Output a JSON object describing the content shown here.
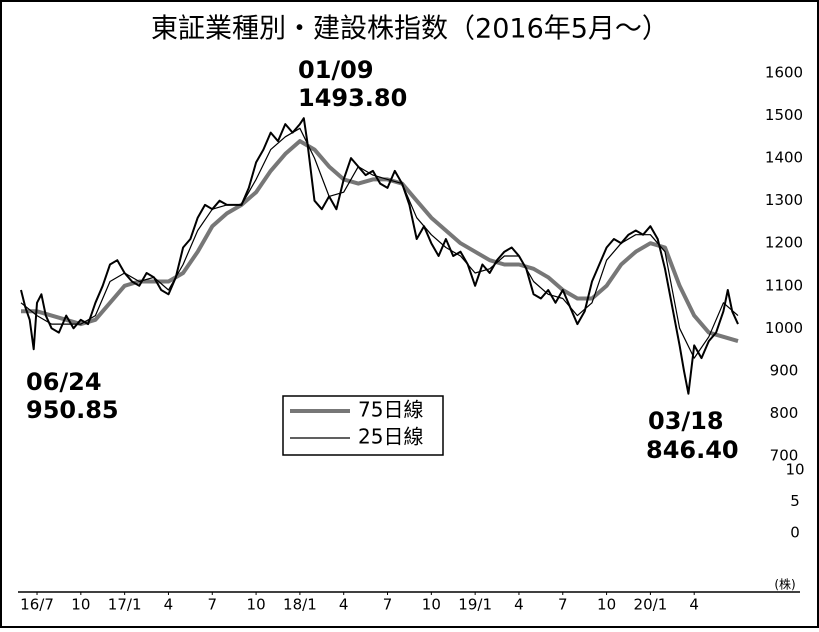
{
  "chart_data": {
    "type": "line",
    "title": "東証業種別・建設株指数（2016年5月～）",
    "xlim": [
      -1.2,
      49.3
    ],
    "xticks": [
      {
        "value": 0,
        "label": "16/7"
      },
      {
        "value": 3,
        "label": "10"
      },
      {
        "value": 6,
        "label": "17/1"
      },
      {
        "value": 9,
        "label": "4"
      },
      {
        "value": 12,
        "label": "7"
      },
      {
        "value": 15,
        "label": "10"
      },
      {
        "value": 18,
        "label": "18/1"
      },
      {
        "value": 21,
        "label": "4"
      },
      {
        "value": 24,
        "label": "7"
      },
      {
        "value": 27,
        "label": "10"
      },
      {
        "value": 30,
        "label": "19/1"
      },
      {
        "value": 33,
        "label": "4"
      },
      {
        "value": 36,
        "label": "7"
      },
      {
        "value": 39,
        "label": "10"
      },
      {
        "value": 42,
        "label": "20/1"
      },
      {
        "value": 45,
        "label": "4"
      }
    ],
    "ylim": [
      700,
      1600
    ],
    "yticks": [
      700,
      800,
      900,
      1000,
      1100,
      1200,
      1300,
      1400,
      1500,
      1600
    ],
    "volume_axis": {
      "ylim": [
        0,
        10
      ],
      "yticks": [
        0,
        5,
        10
      ],
      "unit": "(株)"
    },
    "annotations": [
      {
        "date": "01/09",
        "value": "1493.80"
      },
      {
        "date": "06/24",
        "value": "950.85"
      },
      {
        "date": "03/18",
        "value": "846.40"
      }
    ],
    "series": [
      {
        "color": "#000000",
        "x": [
          -1.1,
          -0.8,
          -0.5,
          -0.23,
          0,
          0.3,
          0.6,
          1,
          1.5,
          2,
          2.5,
          3,
          3.5,
          4,
          4.5,
          5,
          5.5,
          6,
          6.5,
          7,
          7.5,
          8,
          8.5,
          9,
          9.5,
          10,
          10.5,
          11,
          11.5,
          12,
          12.5,
          13,
          13.5,
          14,
          14.5,
          15,
          15.5,
          16,
          16.5,
          17,
          17.5,
          18,
          18.27,
          18.5,
          19,
          19.5,
          20,
          20.5,
          21,
          21.5,
          22,
          22.5,
          23,
          23.5,
          24,
          24.5,
          25,
          25.5,
          26,
          26.5,
          27,
          27.5,
          28,
          28.5,
          29,
          29.5,
          30,
          30.5,
          31,
          31.5,
          32,
          32.5,
          33,
          33.5,
          34,
          34.5,
          35,
          35.5,
          36,
          36.5,
          37,
          37.5,
          38,
          38.5,
          39,
          39.5,
          40,
          40.5,
          41,
          41.5,
          42,
          42.5,
          43,
          43.5,
          44,
          44.3,
          44.6,
          45,
          45.5,
          46,
          46.5,
          47,
          47.3,
          47.6,
          48
        ],
        "values": [
          1090,
          1050,
          1020,
          950.85,
          1060,
          1080,
          1030,
          1000,
          990,
          1030,
          1000,
          1020,
          1010,
          1060,
          1100,
          1150,
          1160,
          1130,
          1110,
          1100,
          1130,
          1120,
          1090,
          1080,
          1120,
          1190,
          1210,
          1260,
          1290,
          1280,
          1300,
          1290,
          1290,
          1290,
          1330,
          1390,
          1420,
          1460,
          1440,
          1480,
          1460,
          1480,
          1493.8,
          1440,
          1300,
          1280,
          1310,
          1280,
          1350,
          1400,
          1380,
          1360,
          1370,
          1340,
          1330,
          1370,
          1340,
          1290,
          1210,
          1240,
          1200,
          1170,
          1210,
          1170,
          1180,
          1150,
          1100,
          1150,
          1130,
          1160,
          1180,
          1190,
          1170,
          1140,
          1080,
          1070,
          1090,
          1060,
          1090,
          1050,
          1010,
          1040,
          1110,
          1150,
          1190,
          1210,
          1200,
          1220,
          1230,
          1220,
          1240,
          1210,
          1140,
          1050,
          960,
          900,
          846.4,
          960,
          930,
          970,
          990,
          1040,
          1090,
          1040,
          1010
        ]
      },
      {
        "name": "75日線",
        "color": "#777777",
        "x": [
          -1.1,
          0,
          1,
          2,
          3,
          4,
          5,
          6,
          7,
          8,
          9,
          10,
          11,
          12,
          13,
          14,
          15,
          16,
          17,
          18,
          19,
          20,
          21,
          22,
          23,
          24,
          25,
          26,
          27,
          28,
          29,
          30,
          31,
          32,
          33,
          34,
          35,
          36,
          37,
          38,
          39,
          40,
          41,
          42,
          43,
          44,
          45,
          46,
          47,
          48
        ],
        "values": [
          1040,
          1040,
          1030,
          1020,
          1010,
          1020,
          1060,
          1100,
          1110,
          1110,
          1110,
          1130,
          1180,
          1240,
          1270,
          1290,
          1320,
          1370,
          1410,
          1440,
          1420,
          1380,
          1350,
          1340,
          1350,
          1350,
          1340,
          1300,
          1260,
          1230,
          1200,
          1180,
          1160,
          1150,
          1150,
          1140,
          1120,
          1090,
          1070,
          1070,
          1100,
          1150,
          1180,
          1200,
          1190,
          1100,
          1030,
          990,
          980,
          970
        ]
      },
      {
        "name": "25日線",
        "color": "#000000",
        "x": [
          -1.1,
          0,
          1,
          2,
          3,
          4,
          5,
          6,
          7,
          8,
          9,
          10,
          11,
          12,
          13,
          14,
          15,
          16,
          17,
          18,
          19,
          20,
          21,
          22,
          23,
          24,
          25,
          26,
          27,
          28,
          29,
          30,
          31,
          32,
          33,
          34,
          35,
          36,
          37,
          38,
          39,
          40,
          41,
          42,
          43,
          44,
          45,
          46,
          47,
          48
        ],
        "values": [
          1060,
          1030,
          1010,
          1010,
          1010,
          1030,
          1110,
          1130,
          1110,
          1120,
          1090,
          1150,
          1230,
          1280,
          1290,
          1290,
          1350,
          1420,
          1450,
          1470,
          1400,
          1310,
          1320,
          1380,
          1360,
          1350,
          1340,
          1260,
          1220,
          1190,
          1170,
          1130,
          1140,
          1170,
          1170,
          1110,
          1080,
          1070,
          1030,
          1060,
          1160,
          1200,
          1220,
          1220,
          1180,
          1000,
          930,
          980,
          1060,
          1030
        ]
      }
    ]
  }
}
